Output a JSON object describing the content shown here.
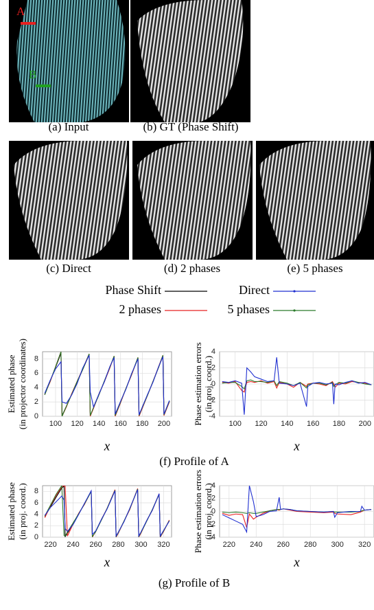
{
  "panels": [
    {
      "caption": "(a) Input"
    },
    {
      "caption": "(b) GT (Phase Shift)"
    },
    {
      "caption": "(c) Direct"
    },
    {
      "caption": "(d) 2 phases"
    },
    {
      "caption": "(e) 5 phases"
    }
  ],
  "markers": [
    {
      "label": "A",
      "color": "#e82020"
    },
    {
      "label": "B",
      "color": "#20a020"
    }
  ],
  "legend": [
    {
      "name": "Phase Shift",
      "color": "#000000"
    },
    {
      "name": "Direct",
      "color": "#1f2fd0"
    },
    {
      "name": "2 phases",
      "color": "#e82020"
    },
    {
      "name": "5 phases",
      "color": "#2a7a2a"
    }
  ],
  "profile_captions": [
    "(f) Profile of A",
    "(g) Profile of B"
  ],
  "chart_data": [
    {
      "type": "line",
      "ylabel": [
        "Estimated phase",
        "(in projector coordinates)"
      ],
      "xlabel": "x",
      "x": [
        90,
        95,
        100,
        105,
        106,
        110,
        115,
        120,
        125,
        131,
        132,
        135,
        140,
        145,
        150,
        154,
        155,
        160,
        165,
        170,
        176,
        177,
        180,
        185,
        190,
        195,
        199,
        200,
        205
      ],
      "xlim": [
        88,
        207
      ],
      "xticks": [
        100,
        120,
        140,
        160,
        180,
        200
      ],
      "ylim": [
        0,
        9
      ],
      "yticks": [
        0,
        2,
        4,
        6,
        8
      ],
      "grid": true,
      "series": [
        {
          "color": "#000000",
          "values": [
            3.0,
            4.9,
            6.8,
            8.8,
            0.1,
            1.4,
            3.1,
            4.8,
            6.5,
            8.6,
            0.1,
            1.2,
            3.0,
            4.9,
            6.8,
            8.3,
            0.1,
            2.0,
            3.9,
            5.8,
            8.1,
            0.1,
            1.2,
            3.0,
            4.9,
            6.8,
            8.4,
            0.2,
            2.1
          ]
        },
        {
          "color": "#e82020",
          "values": [
            3.1,
            4.8,
            6.9,
            9.0,
            0.0,
            1.3,
            3.2,
            4.9,
            6.6,
            8.7,
            0.0,
            1.1,
            3.1,
            4.8,
            6.7,
            8.4,
            0.0,
            1.9,
            3.9,
            5.7,
            8.2,
            0.0,
            1.1,
            3.0,
            4.9,
            6.9,
            8.5,
            0.1,
            2.0
          ]
        },
        {
          "color": "#2a7a2a",
          "values": [
            3.0,
            4.9,
            6.9,
            9.0,
            0.0,
            1.4,
            3.1,
            4.9,
            6.5,
            8.7,
            0.1,
            1.2,
            3.0,
            4.9,
            6.8,
            8.4,
            0.1,
            2.0,
            3.9,
            5.8,
            8.2,
            0.1,
            1.2,
            3.0,
            4.9,
            6.8,
            8.5,
            0.2,
            2.1
          ]
        },
        {
          "color": "#1f2fd0",
          "values": [
            3.2,
            5.0,
            6.6,
            7.6,
            2.0,
            1.8,
            3.0,
            4.6,
            6.7,
            8.5,
            3.4,
            1.3,
            3.1,
            4.8,
            6.9,
            8.2,
            0.3,
            2.1,
            3.8,
            5.9,
            8.0,
            0.2,
            1.3,
            3.1,
            4.8,
            6.9,
            8.3,
            0.3,
            2.2
          ]
        }
      ]
    },
    {
      "type": "line",
      "ylabel": [
        "Phase estimation errors",
        "(in proj. coord.)"
      ],
      "xlabel": "x",
      "x": [
        90,
        95,
        100,
        105,
        107,
        109,
        112,
        115,
        120,
        125,
        130,
        132,
        134,
        140,
        145,
        150,
        155,
        156,
        160,
        165,
        170,
        175,
        176,
        177,
        180,
        185,
        190,
        195,
        200,
        205
      ],
      "xlim": [
        88,
        207
      ],
      "xticks": [
        100,
        120,
        140,
        160,
        180,
        200
      ],
      "ylim": [
        -4,
        4
      ],
      "yticks": [
        -4,
        -2,
        0,
        2,
        4
      ],
      "grid": true,
      "series": [
        {
          "color": "#e82020",
          "values": [
            0.2,
            0.1,
            0.3,
            -0.8,
            -1.0,
            0.2,
            0.3,
            0.2,
            0.4,
            0.1,
            0.3,
            -0.5,
            0.2,
            0.0,
            -0.4,
            0.2,
            -0.3,
            0.0,
            0.1,
            0.0,
            -0.2,
            0.3,
            0.0,
            -0.4,
            0.1,
            0.0,
            0.3,
            0.2,
            0.1,
            -0.1
          ]
        },
        {
          "color": "#2a7a2a",
          "values": [
            0.1,
            0.2,
            0.2,
            -0.3,
            -0.6,
            0.4,
            0.5,
            0.3,
            0.3,
            0.2,
            0.4,
            -0.2,
            0.3,
            0.1,
            -0.2,
            0.2,
            -0.5,
            -0.1,
            0.1,
            0.1,
            -0.1,
            0.2,
            -0.3,
            -0.1,
            0.2,
            0.1,
            0.4,
            0.2,
            0.0,
            -0.1
          ]
        },
        {
          "color": "#1f2fd0",
          "values": [
            0.3,
            0.2,
            0.4,
            0.1,
            -3.8,
            2.0,
            1.5,
            0.9,
            0.6,
            0.3,
            0.4,
            3.3,
            0.1,
            0.0,
            -0.2,
            0.1,
            -2.8,
            -0.3,
            0.1,
            0.2,
            0.0,
            0.1,
            -2.5,
            0.0,
            -0.1,
            0.2,
            0.4,
            0.1,
            0.2,
            -0.1
          ]
        }
      ]
    },
    {
      "type": "line",
      "ylabel": [
        "Estimated phase",
        "(in proj. coord.)"
      ],
      "xlabel": "x",
      "x": [
        215,
        220,
        225,
        230,
        232,
        233,
        235,
        240,
        245,
        250,
        256,
        257,
        260,
        265,
        270,
        277,
        278,
        280,
        285,
        290,
        297,
        298,
        300,
        305,
        310,
        316,
        317,
        320,
        325
      ],
      "xlim": [
        213,
        327
      ],
      "xticks": [
        220,
        240,
        260,
        280,
        300,
        320
      ],
      "ylim": [
        0,
        9
      ],
      "yticks": [
        0,
        2,
        4,
        6,
        8
      ],
      "grid": true,
      "series": [
        {
          "color": "#000000",
          "values": [
            3.6,
            5.3,
            7.0,
            8.6,
            8.9,
            0.1,
            0.7,
            2.4,
            4.1,
            5.8,
            8.0,
            0.1,
            1.0,
            3.0,
            5.0,
            8.2,
            0.1,
            0.8,
            2.8,
            4.9,
            8.4,
            0.1,
            0.8,
            2.8,
            4.8,
            7.5,
            0.1,
            1.1,
            2.9
          ]
        },
        {
          "color": "#e82020",
          "values": [
            3.4,
            5.5,
            7.3,
            8.8,
            9.0,
            8.9,
            0.2,
            2.3,
            4.2,
            5.7,
            8.1,
            0.0,
            1.0,
            3.1,
            5.0,
            8.3,
            0.0,
            0.7,
            2.8,
            4.8,
            8.5,
            0.0,
            0.7,
            2.9,
            4.7,
            7.6,
            0.0,
            1.0,
            3.0
          ]
        },
        {
          "color": "#2a7a2a",
          "values": [
            3.7,
            5.6,
            7.5,
            9.0,
            0.3,
            0.2,
            0.9,
            2.5,
            4.1,
            5.8,
            8.0,
            0.1,
            1.0,
            3.0,
            5.0,
            8.2,
            0.1,
            0.8,
            2.8,
            4.9,
            8.4,
            0.1,
            0.8,
            2.8,
            4.8,
            7.5,
            0.1,
            1.1,
            2.9
          ]
        },
        {
          "color": "#1f2fd0",
          "values": [
            3.8,
            5.2,
            6.2,
            7.2,
            6.5,
            1.5,
            1.0,
            2.2,
            4.0,
            5.9,
            8.1,
            0.5,
            1.1,
            3.1,
            4.9,
            8.1,
            0.2,
            0.9,
            2.7,
            5.0,
            8.3,
            0.2,
            0.9,
            2.9,
            4.7,
            7.6,
            0.2,
            1.2,
            2.8
          ]
        }
      ]
    },
    {
      "type": "line",
      "ylabel": [
        "Phase estimation errors",
        "(in proj. coord.)"
      ],
      "xlabel": "x",
      "x": [
        215,
        220,
        225,
        230,
        233,
        235,
        238,
        240,
        245,
        250,
        255,
        257,
        258,
        260,
        265,
        270,
        280,
        290,
        297,
        298,
        300,
        310,
        317,
        318,
        320,
        325
      ],
      "xlim": [
        213,
        327
      ],
      "xticks": [
        220,
        240,
        260,
        280,
        300,
        320
      ],
      "ylim": [
        -4,
        4
      ],
      "yticks": [
        -4,
        -2,
        0,
        2,
        4
      ],
      "grid": true,
      "series": [
        {
          "color": "#e82020",
          "values": [
            -0.3,
            -0.6,
            -0.4,
            -0.5,
            -2.5,
            -0.4,
            -1.2,
            -0.9,
            -0.3,
            0.1,
            0.3,
            0.2,
            0.3,
            0.4,
            0.2,
            0.0,
            -0.1,
            -0.2,
            -0.1,
            -0.3,
            -0.4,
            -0.5,
            -0.1,
            0.0,
            0.2,
            0.3
          ]
        },
        {
          "color": "#2a7a2a",
          "values": [
            -0.1,
            -0.2,
            -0.1,
            -0.2,
            -0.3,
            -0.2,
            -0.3,
            -0.3,
            -0.1,
            0.1,
            0.3,
            0.3,
            0.3,
            0.4,
            0.3,
            0.1,
            0.0,
            -0.1,
            0.0,
            -0.1,
            -0.1,
            -0.1,
            0.0,
            0.1,
            0.2,
            0.3
          ]
        },
        {
          "color": "#1f2fd0",
          "values": [
            -0.5,
            -1.0,
            -1.5,
            -2.0,
            -3.2,
            4.0,
            1.5,
            -0.8,
            -0.5,
            0.0,
            0.1,
            2.2,
            0.3,
            0.4,
            0.3,
            0.1,
            0.0,
            -0.1,
            0.0,
            -0.9,
            -0.2,
            0.0,
            0.0,
            0.8,
            0.2,
            0.3
          ]
        }
      ]
    }
  ]
}
